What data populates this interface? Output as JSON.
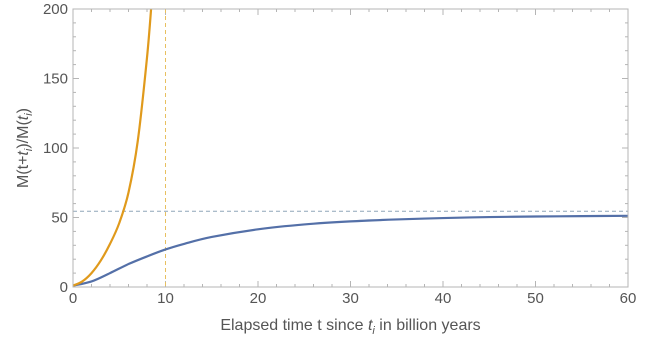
{
  "chart_data": {
    "type": "line",
    "xlabel": "Elapsed time t since ",
    "xlabel_sub": "i",
    "xlabel_suffix": " in billion years",
    "ylabel_parts": [
      "M(t+",
      "t",
      "i",
      ")/M(",
      "t",
      "i",
      ")"
    ],
    "xlim": [
      0,
      60
    ],
    "ylim": [
      0,
      200
    ],
    "xticks": [
      0,
      10,
      20,
      30,
      40,
      50,
      60
    ],
    "yticks": [
      0,
      50,
      100,
      150,
      200
    ],
    "series": [
      {
        "color": "#5470a8",
        "x": [
          0,
          2,
          4,
          6,
          8,
          10,
          12,
          15,
          20,
          25,
          30,
          35,
          40,
          45,
          50,
          55,
          60
        ],
        "y": [
          1,
          4,
          10,
          16.5,
          22,
          27,
          31,
          36,
          41.5,
          45,
          47.2,
          48.6,
          49.6,
          50.3,
          50.7,
          51.0,
          51.2
        ]
      },
      {
        "color": "#e09a1c",
        "x": [
          0,
          1,
          2,
          3,
          4,
          5,
          6,
          7,
          8,
          8.5
        ],
        "y": [
          1,
          4,
          10,
          19,
          31,
          46,
          68,
          105,
          165,
          205
        ]
      }
    ],
    "reference_lines": [
      {
        "orientation": "horizontal",
        "value": 54.5,
        "color": "#8fa6b8"
      },
      {
        "orientation": "vertical",
        "value": 10,
        "color": "#e8c060"
      }
    ]
  }
}
